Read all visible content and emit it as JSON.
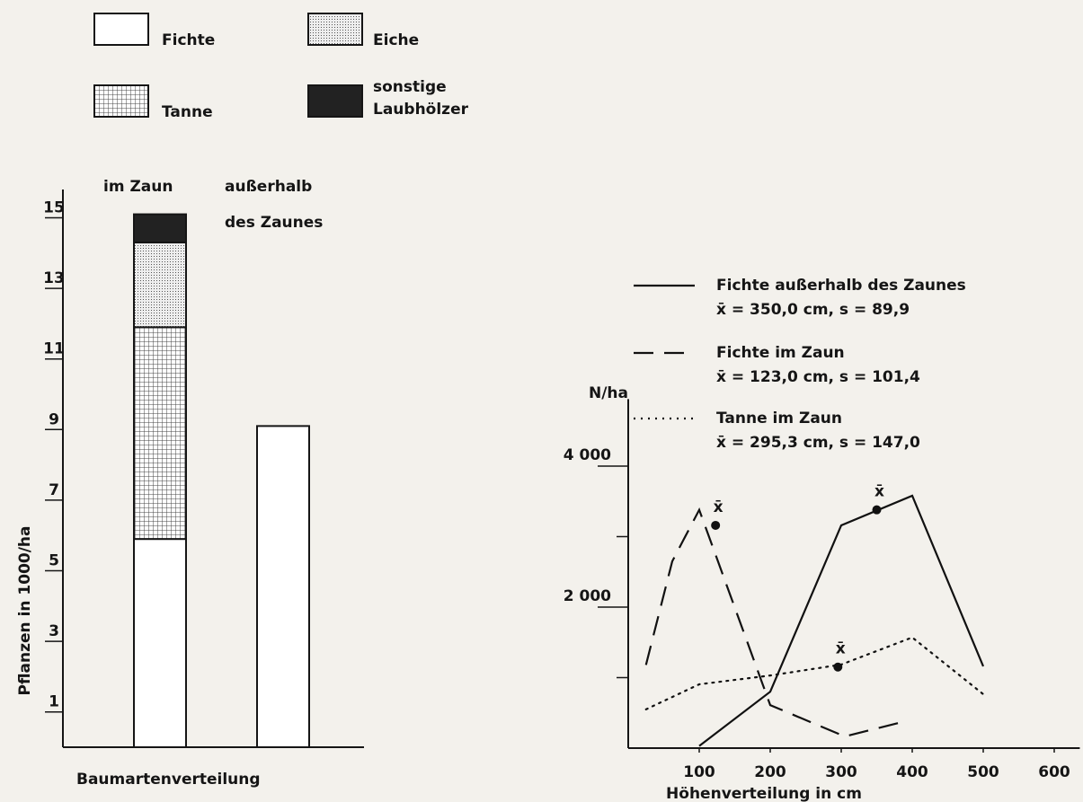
{
  "chart_data": [
    {
      "type": "stacked_bar",
      "legend": "top",
      "y_label": "Pflanzen in 1000/ha",
      "x_label": "Baumartenverteilung",
      "categories": [
        "im Zaun",
        "außerhalb des Zaunes"
      ],
      "series": [
        {
          "name": "Fichte",
          "color": "#ffffff",
          "pattern": "none",
          "values": [
            5.9,
            9.1
          ]
        },
        {
          "name": "Tanne",
          "color": "#ffffff",
          "pattern": "grid",
          "values": [
            6.0,
            null
          ]
        },
        {
          "name": "Eiche",
          "color": "#e6e6e6",
          "pattern": "dots",
          "values": [
            2.4,
            null
          ]
        },
        {
          "name": "sonstige Laubhölzer",
          "color": "#222222",
          "pattern": "solid",
          "values": [
            0.8,
            null
          ]
        }
      ],
      "ylim": [
        0,
        15.8
      ],
      "yticks": [
        1,
        3,
        5,
        7,
        9,
        11,
        13,
        15
      ]
    },
    {
      "type": "line",
      "y_label": "N/ha",
      "x_label": "Höhenverteilung in cm",
      "xlim": [
        0,
        636
      ],
      "xticks": [
        100,
        200,
        300,
        400,
        500,
        600
      ],
      "ylim": [
        0,
        4950
      ],
      "yticks": [
        {
          "value": 2000,
          "label": "2 000"
        },
        {
          "value": 4000,
          "label": "4 000"
        }
      ],
      "minor_yticks": [
        1000,
        3000
      ],
      "series": [
        {
          "name": "Fichte außerhalb des Zaunes",
          "stats": "x̄ = 350,0 cm,  s = 89,9",
          "style": "solid",
          "color": "#111111",
          "x": [
            100,
            200,
            300,
            400,
            500
          ],
          "values": [
            30,
            800,
            3160,
            3580,
            1160
          ],
          "mean": {
            "x": 350.0,
            "y": 3380,
            "label": "x̄"
          }
        },
        {
          "name": "Fichte im Zaun",
          "stats": "x̄ = 123,0 cm,  s = 101,4",
          "style": "dashed",
          "color": "#111111",
          "x": [
            25,
            62,
            100,
            200,
            305,
            390
          ],
          "values": [
            1180,
            2650,
            3380,
            610,
            165,
            380
          ],
          "mean": {
            "x": 123.0,
            "y": 3160,
            "label": "x̄"
          }
        },
        {
          "name": "Tanne im Zaun",
          "stats": "x̄ = 295,3 cm,  s = 147,0",
          "style": "dotted",
          "color": "#111111",
          "x": [
            25,
            100,
            200,
            300,
            400,
            500
          ],
          "values": [
            550,
            905,
            1030,
            1185,
            1570,
            765
          ],
          "mean": {
            "x": 295.3,
            "y": 1150,
            "label": "x̄"
          }
        }
      ]
    }
  ]
}
